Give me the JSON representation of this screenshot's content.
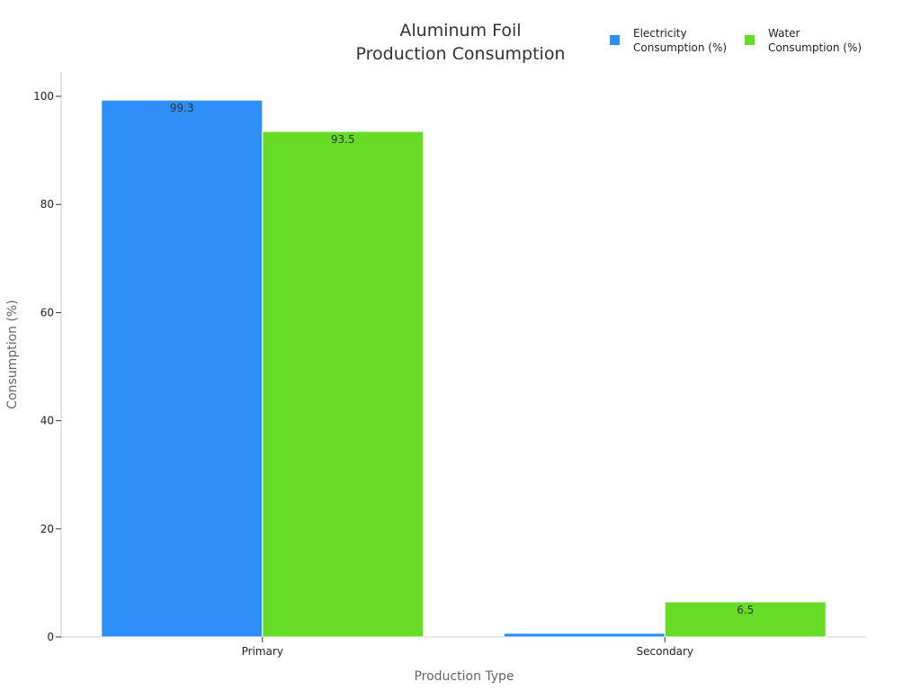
{
  "chart_data": {
    "type": "bar",
    "title": [
      "Aluminum Foil",
      "Production Consumption"
    ],
    "xlabel": "Production Type",
    "ylabel": "Consumption (%)",
    "categories": [
      "Primary",
      "Secondary"
    ],
    "series": [
      {
        "name": [
          "Electricity",
          "Consumption (%)"
        ],
        "color": "#2f8ff8",
        "values": [
          99.3,
          0.7
        ],
        "labels": [
          "99.3",
          ""
        ]
      },
      {
        "name": [
          "Water",
          "Consumption (%)"
        ],
        "color": "#66dc26",
        "values": [
          93.5,
          6.5
        ],
        "labels": [
          "93.5",
          "6.5"
        ]
      }
    ],
    "ylim": [
      0,
      104.5
    ],
    "yticks": [
      0,
      20,
      40,
      60,
      80,
      100
    ],
    "grid": false,
    "legend": "top-right"
  }
}
